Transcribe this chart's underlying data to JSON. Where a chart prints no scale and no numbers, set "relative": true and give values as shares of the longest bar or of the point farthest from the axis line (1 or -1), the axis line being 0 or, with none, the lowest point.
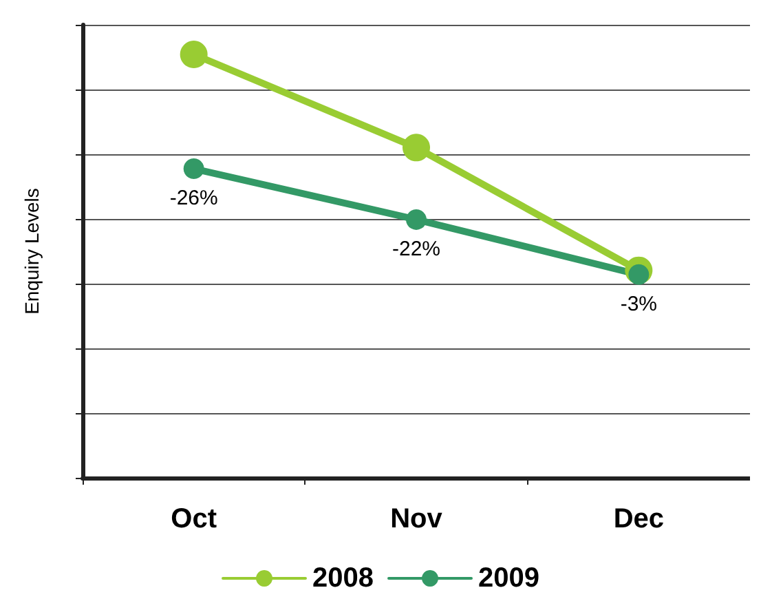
{
  "chart_data": {
    "type": "line",
    "ylabel": "Enquiry Levels",
    "categories": [
      "Oct",
      "Nov",
      "Dec"
    ],
    "relative": true,
    "grid": "y",
    "legend": "bottom",
    "marker": "circle",
    "line_style": "solid",
    "series": [
      {
        "name": "2008",
        "color": "#99cc33",
        "values": [
          1,
          0.78,
          0.49
        ]
      },
      {
        "name": "2009",
        "color": "#339966",
        "values": [
          0.73,
          0.61,
          0.48
        ]
      }
    ],
    "annotations": [
      {
        "text": "-26%",
        "x": "Oct",
        "y": 0.73
      },
      {
        "text": "-22%",
        "x": "Nov",
        "y": 0.61
      },
      {
        "text": "-3%",
        "x": "Dec",
        "y": 0.48
      }
    ]
  }
}
